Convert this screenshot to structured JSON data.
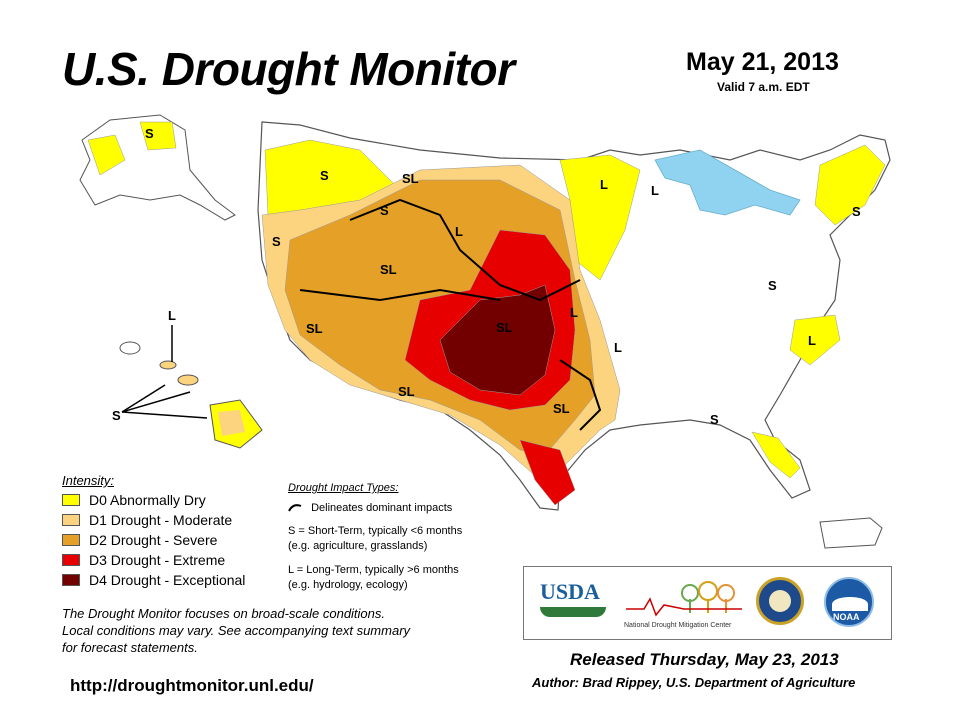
{
  "header": {
    "title": "U.S. Drought Monitor",
    "date": "May 21, 2013",
    "valid": "Valid 7 a.m. EDT"
  },
  "colors": {
    "D0": "#ffff00",
    "D1": "#fcd37f",
    "D2": "#e5a127",
    "D3": "#e60000",
    "D4": "#730000",
    "water": "#8fd3f0",
    "none": "#ffffff"
  },
  "legend": {
    "title": "Intensity:",
    "items": [
      {
        "code": "D0",
        "label": "D0 Abnormally Dry"
      },
      {
        "code": "D1",
        "label": "D1 Drought - Moderate"
      },
      {
        "code": "D2",
        "label": "D2 Drought - Severe"
      },
      {
        "code": "D3",
        "label": "D3 Drought - Extreme"
      },
      {
        "code": "D4",
        "label": "D4 Drought - Exceptional"
      }
    ]
  },
  "impacts": {
    "title": "Drought Impact Types:",
    "line_label": "Delineates dominant impacts",
    "short_term_1": "S = Short-Term, typically <6 months",
    "short_term_2": "(e.g. agriculture, grasslands)",
    "long_term_1": "L = Long-Term, typically >6 months",
    "long_term_2": "(e.g. hydrology, ecology)"
  },
  "map_labels": {
    "S": "S",
    "L": "L",
    "SL": "SL"
  },
  "note": {
    "line1": "The Drought Monitor focuses on broad-scale conditions.",
    "line2": "Local conditions may vary. See accompanying text summary",
    "line3": "for forecast statements."
  },
  "footer": {
    "url": "http://droughtmonitor.unl.edu/",
    "released": "Released Thursday, May 23, 2013",
    "author": "Author: Brad Rippey, U.S. Department of Agriculture"
  },
  "logos": {
    "usda": "USDA",
    "ndmc": "National Drought Mitigation Center",
    "noaa": "NOAA"
  }
}
